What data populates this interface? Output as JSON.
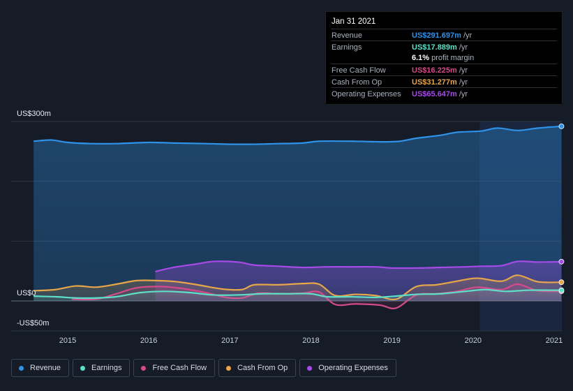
{
  "chart_data": {
    "type": "area",
    "y_axis": {
      "top_label": "US$300m",
      "zero_label": "US$0",
      "bottom_label": "-US$50m",
      "ylim": [
        -50,
        300
      ]
    },
    "x_ticks": [
      "2015",
      "2016",
      "2017",
      "2018",
      "2019",
      "2020",
      "2021"
    ],
    "x_range": [
      2014.58,
      2021.09
    ],
    "forecast_start": 2020.08,
    "grid": true,
    "series": [
      {
        "name": "Revenue",
        "color": "#2e93e8",
        "x": [
          2014.58,
          2014.8,
          2015.0,
          2015.3,
          2015.6,
          2016.0,
          2016.3,
          2016.7,
          2017.0,
          2017.3,
          2017.6,
          2017.9,
          2018.1,
          2018.5,
          2018.9,
          2019.1,
          2019.3,
          2019.6,
          2019.8,
          2020.1,
          2020.3,
          2020.55,
          2020.8,
          2021.09
        ],
        "values": [
          267,
          269,
          265,
          263,
          263,
          265,
          264,
          263,
          262,
          262,
          263,
          264,
          267,
          267,
          266,
          267,
          272,
          277,
          282,
          284,
          289,
          285,
          289,
          292
        ]
      },
      {
        "name": "Operating Expenses",
        "color": "#a64ae8",
        "x": [
          2016.08,
          2016.3,
          2016.6,
          2016.8,
          2017.1,
          2017.3,
          2017.6,
          2017.9,
          2018.2,
          2018.5,
          2018.8,
          2019.0,
          2019.3,
          2019.6,
          2019.9,
          2020.1,
          2020.35,
          2020.55,
          2020.8,
          2021.09
        ],
        "values": [
          49,
          56,
          62,
          66,
          65,
          60,
          58,
          56,
          57,
          57,
          57,
          55,
          55,
          56,
          57,
          58,
          59,
          66,
          65,
          65.6
        ]
      },
      {
        "name": "Cash From Op",
        "color": "#e8a64a",
        "x": [
          2014.58,
          2014.85,
          2015.1,
          2015.35,
          2015.6,
          2015.85,
          2016.1,
          2016.35,
          2016.6,
          2016.9,
          2017.15,
          2017.3,
          2017.6,
          2017.9,
          2018.1,
          2018.3,
          2018.55,
          2018.8,
          2019.05,
          2019.3,
          2019.55,
          2019.8,
          2020.05,
          2020.35,
          2020.55,
          2020.8,
          2021.09
        ],
        "values": [
          17,
          19,
          25,
          23,
          28,
          34,
          34,
          32,
          27,
          20,
          19,
          27,
          27,
          29,
          28,
          9,
          11,
          9,
          3,
          24,
          27,
          33,
          38,
          33,
          43,
          32,
          31.3
        ]
      },
      {
        "name": "Free Cash Flow",
        "color": "#d44a8a",
        "x": [
          2015.05,
          2015.35,
          2015.6,
          2015.85,
          2016.15,
          2016.4,
          2016.7,
          2016.95,
          2017.15,
          2017.35,
          2017.6,
          2017.9,
          2018.1,
          2018.3,
          2018.55,
          2018.85,
          2019.05,
          2019.3,
          2019.55,
          2019.8,
          2020.05,
          2020.35,
          2020.55,
          2020.8,
          2021.09
        ],
        "values": [
          3,
          3,
          12,
          22,
          24,
          21,
          14,
          6,
          5,
          13,
          12,
          13,
          15,
          -6,
          -5,
          -7,
          -12,
          10,
          12,
          16,
          23,
          19,
          28,
          17,
          16.2
        ]
      },
      {
        "name": "Earnings",
        "color": "#5de0c8",
        "x": [
          2014.58,
          2014.85,
          2015.1,
          2015.35,
          2015.6,
          2015.9,
          2016.2,
          2016.5,
          2016.8,
          2017.1,
          2017.4,
          2017.7,
          2018.0,
          2018.2,
          2018.5,
          2018.8,
          2019.05,
          2019.3,
          2019.6,
          2019.9,
          2020.15,
          2020.4,
          2020.7,
          2021.09
        ],
        "values": [
          8,
          7,
          5,
          5,
          7,
          14,
          16,
          14,
          10,
          10,
          12,
          12,
          12,
          7,
          7,
          6,
          8,
          11,
          12,
          16,
          19,
          16,
          18,
          17.9
        ]
      }
    ]
  },
  "tooltip": {
    "date": "Jan 31 2021",
    "rows": [
      {
        "name": "Revenue",
        "value": "US$291.697m",
        "unit": "/yr",
        "color": "#2e93e8"
      },
      {
        "name": "Earnings",
        "value": "US$17.889m",
        "unit": "/yr",
        "color": "#5de0c8"
      },
      {
        "name": "",
        "value": "6.1%",
        "unit": "profit margin",
        "color": "#ffffff"
      },
      {
        "name": "Free Cash Flow",
        "value": "US$16.225m",
        "unit": "/yr",
        "color": "#d44a8a"
      },
      {
        "name": "Cash From Op",
        "value": "US$31.277m",
        "unit": "/yr",
        "color": "#e8a64a"
      },
      {
        "name": "Operating Expenses",
        "value": "US$65.647m",
        "unit": "/yr",
        "color": "#a64ae8"
      }
    ]
  },
  "legend": [
    {
      "label": "Revenue",
      "color": "#2e93e8"
    },
    {
      "label": "Earnings",
      "color": "#5de0c8"
    },
    {
      "label": "Free Cash Flow",
      "color": "#d44a8a"
    },
    {
      "label": "Cash From Op",
      "color": "#e8a64a"
    },
    {
      "label": "Operating Expenses",
      "color": "#a64ae8"
    }
  ]
}
